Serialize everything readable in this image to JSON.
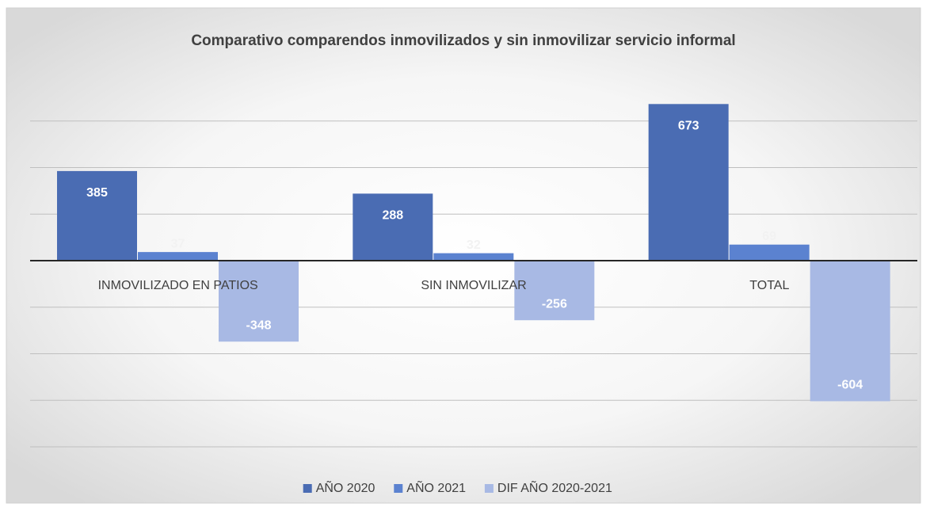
{
  "chart_data": {
    "type": "bar",
    "title": "Comparativo comparendos inmovilizados y sin inmovilizar servicio informal",
    "categories": [
      "INMOVILIZADO EN PATIOS",
      "SIN INMOVILIZAR",
      "TOTAL"
    ],
    "series": [
      {
        "name": "AÑO 2020",
        "color": "#4a6cb3",
        "values": [
          385,
          288,
          673
        ]
      },
      {
        "name": "AÑO 2021",
        "color": "#5b82d0",
        "values": [
          37,
          32,
          69
        ]
      },
      {
        "name": "DIF AÑO 2020-2021",
        "color": "#a8b9e4",
        "values": [
          -348,
          -256,
          -604
        ]
      }
    ],
    "ylim": [
      -800,
      800
    ],
    "yticks": [
      -800,
      -600,
      -400,
      -200,
      0,
      200,
      400,
      600
    ],
    "grid": true,
    "legend": "bottom"
  }
}
